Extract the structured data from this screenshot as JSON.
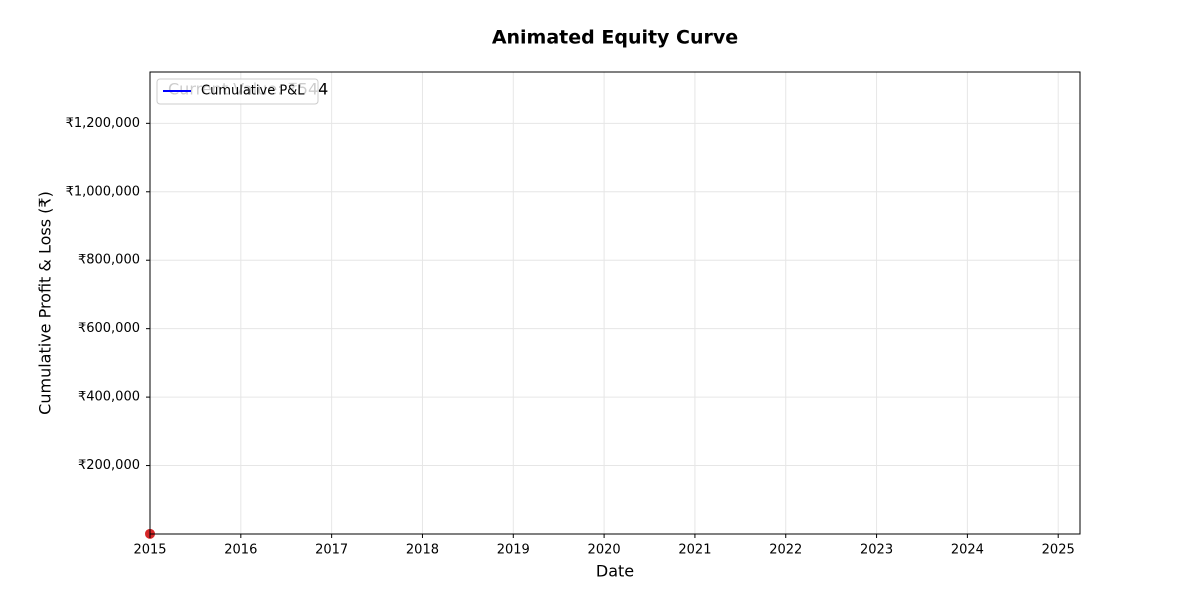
{
  "chart_data": {
    "type": "line",
    "title": "Animated Equity Curve",
    "x_label": "Date",
    "y_label": "Cumulative Profit & Loss (₹)",
    "xlim": [
      2015,
      2025.24
    ],
    "xticks": [
      2015,
      2016,
      2017,
      2018,
      2019,
      2020,
      2021,
      2022,
      2023,
      2024,
      2025
    ],
    "ylim": [
      0,
      1350000
    ],
    "yticks": [
      {
        "value": 200000,
        "label": "₹200,000"
      },
      {
        "value": 400000,
        "label": "₹400,000"
      },
      {
        "value": 600000,
        "label": "₹600,000"
      },
      {
        "value": 800000,
        "label": "₹800,000"
      },
      {
        "value": 1000000,
        "label": "₹1,000,000"
      },
      {
        "value": 1200000,
        "label": "₹1,200,000"
      }
    ],
    "grid": true,
    "legend": "upper left",
    "series": [
      {
        "name": "Cumulative P&L",
        "color": "#0000ff",
        "x": [
          2015
        ],
        "values": [
          544
        ]
      }
    ],
    "current_point": {
      "x": 2015,
      "value": 544,
      "color": "#d62728",
      "label": "Current Value: ₹544"
    }
  }
}
